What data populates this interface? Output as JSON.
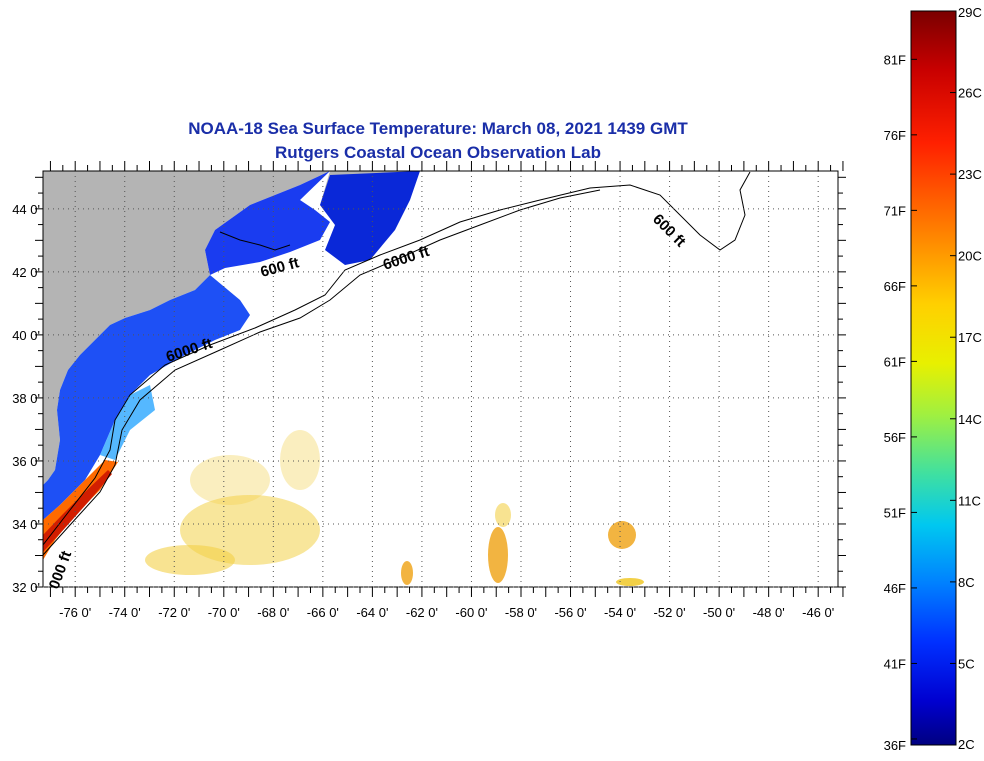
{
  "title": {
    "line1": "NOAA-18 Sea Surface Temperature:  March 08, 2021 1439 GMT",
    "line2": "Rutgers Coastal Ocean Observation Lab"
  },
  "map": {
    "lon_ticks": [
      "-76 0'",
      "-74 0'",
      "-72 0'",
      "-70 0'",
      "-68 0'",
      "-66 0'",
      "-64 0'",
      "-62 0'",
      "-60 0'",
      "-58 0'",
      "-56 0'",
      "-54 0'",
      "-52 0'",
      "-50 0'",
      "-48 0'",
      "-46 0'"
    ],
    "lat_ticks": [
      "44 0'",
      "42 0'",
      "40 0'",
      "38 0'",
      "36 0'",
      "34 0'",
      "32 0'"
    ],
    "lon_range": [
      -77,
      -45
    ],
    "lat_range": [
      32,
      45
    ],
    "land_color": "#b4b4b4",
    "grid": "dotted",
    "contour_labels": [
      "600 ft",
      "6000 ft",
      "600 ft",
      "6000 ft",
      "000 ft"
    ]
  },
  "colorbar": {
    "celsius_labels": [
      "29C",
      "26C",
      "23C",
      "20C",
      "17C",
      "14C",
      "11C",
      "8C",
      "5C",
      "2C"
    ],
    "fahrenheit_labels": [
      "81F",
      "76F",
      "71F",
      "66F",
      "61F",
      "56F",
      "51F",
      "46F",
      "41F",
      "36F"
    ],
    "colors": [
      "#7a0000",
      "#c80000",
      "#ff2000",
      "#ff8000",
      "#ffd000",
      "#e8f000",
      "#a0f040",
      "#40e0a0",
      "#00c8f0",
      "#0080ff",
      "#0030ff",
      "#0000d0",
      "#000080"
    ]
  }
}
